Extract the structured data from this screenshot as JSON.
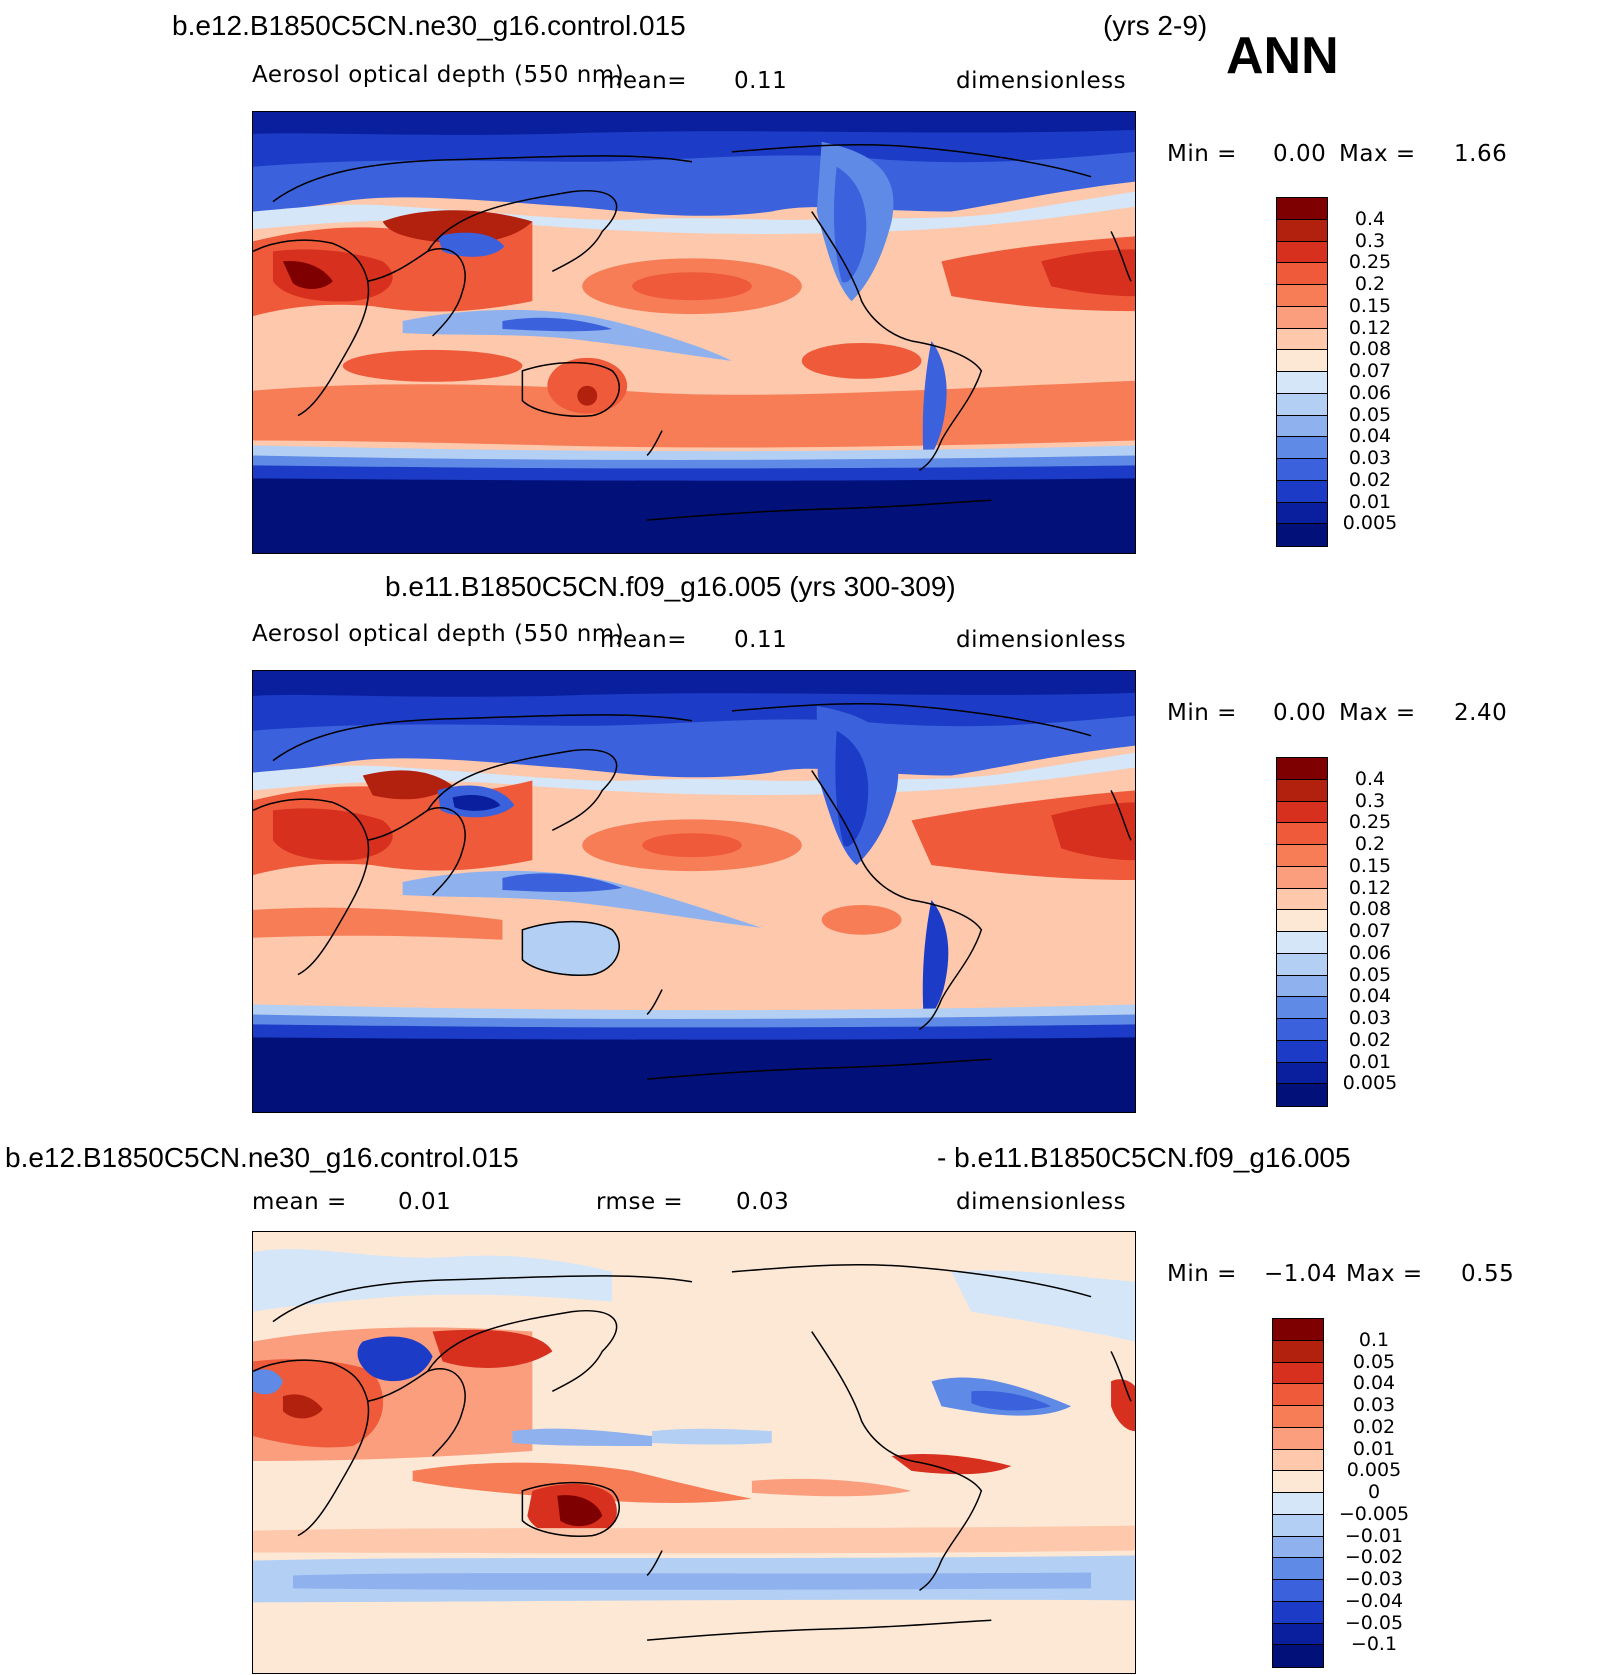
{
  "header": {
    "case1": "b.e12.B1850C5CN.ne30_g16.control.015",
    "years1": "(yrs 2-9)",
    "season": "ANN"
  },
  "panels": [
    {
      "variable": "Aerosol optical depth (550 nm)",
      "mean_label": "mean=",
      "mean_value": "0.11",
      "units": "dimensionless",
      "min_label": "Min =",
      "min_value": "0.00",
      "max_label": "Max =",
      "max_value": "1.66",
      "colorbar_labels": [
        "0.4",
        "0.3",
        "0.25",
        "0.2",
        "0.15",
        "0.12",
        "0.08",
        "0.07",
        "0.06",
        "0.05",
        "0.04",
        "0.03",
        "0.02",
        "0.01",
        "0.005"
      ]
    },
    {
      "title": "b.e11.B1850C5CN.f09_g16.005 (yrs 300-309)",
      "variable": "Aerosol optical depth (550 nm)",
      "mean_label": "mean=",
      "mean_value": "0.11",
      "units": "dimensionless",
      "min_label": "Min =",
      "min_value": "0.00",
      "max_label": "Max =",
      "max_value": "2.40",
      "colorbar_labels": [
        "0.4",
        "0.3",
        "0.25",
        "0.2",
        "0.15",
        "0.12",
        "0.08",
        "0.07",
        "0.06",
        "0.05",
        "0.04",
        "0.03",
        "0.02",
        "0.01",
        "0.005"
      ]
    },
    {
      "title_left": "b.e12.B1850C5CN.ne30_g16.control.015",
      "title_right": "- b.e11.B1850C5CN.f09_g16.005",
      "mean_label": "mean =",
      "mean_value": "0.01",
      "rmse_label": "rmse =",
      "rmse_value": "0.03",
      "units": "dimensionless",
      "min_label": "Min =",
      "min_value": "−1.04",
      "max_label": "Max =",
      "max_value": "0.55",
      "colorbar_labels": [
        "0.1",
        "0.05",
        "0.04",
        "0.03",
        "0.02",
        "0.01",
        "0.005",
        "0",
        "−0.005",
        "−0.01",
        "−0.02",
        "−0.03",
        "−0.04",
        "−0.05",
        "−0.1"
      ]
    }
  ],
  "colors": {
    "abs_scale": [
      "#7f0000",
      "#b2200e",
      "#d7301f",
      "#ef5a3a",
      "#f77d57",
      "#fb9e7e",
      "#fdc8ac",
      "#fde8d6",
      "#d4e6f7",
      "#b3d0f4",
      "#8fb2ef",
      "#5f8ae6",
      "#3b62dc",
      "#1c3cc8",
      "#0a1f9e",
      "#02117a"
    ],
    "diff_scale": [
      "#7f0000",
      "#b2200e",
      "#d7301f",
      "#ef5a3a",
      "#f77d57",
      "#fb9e7e",
      "#fdc8ac",
      "#fde8d6",
      "#d4e6f7",
      "#b3d0f4",
      "#8fb2ef",
      "#5f8ae6",
      "#3b62dc",
      "#1c3cc8",
      "#0a1f9e",
      "#02117a"
    ]
  }
}
